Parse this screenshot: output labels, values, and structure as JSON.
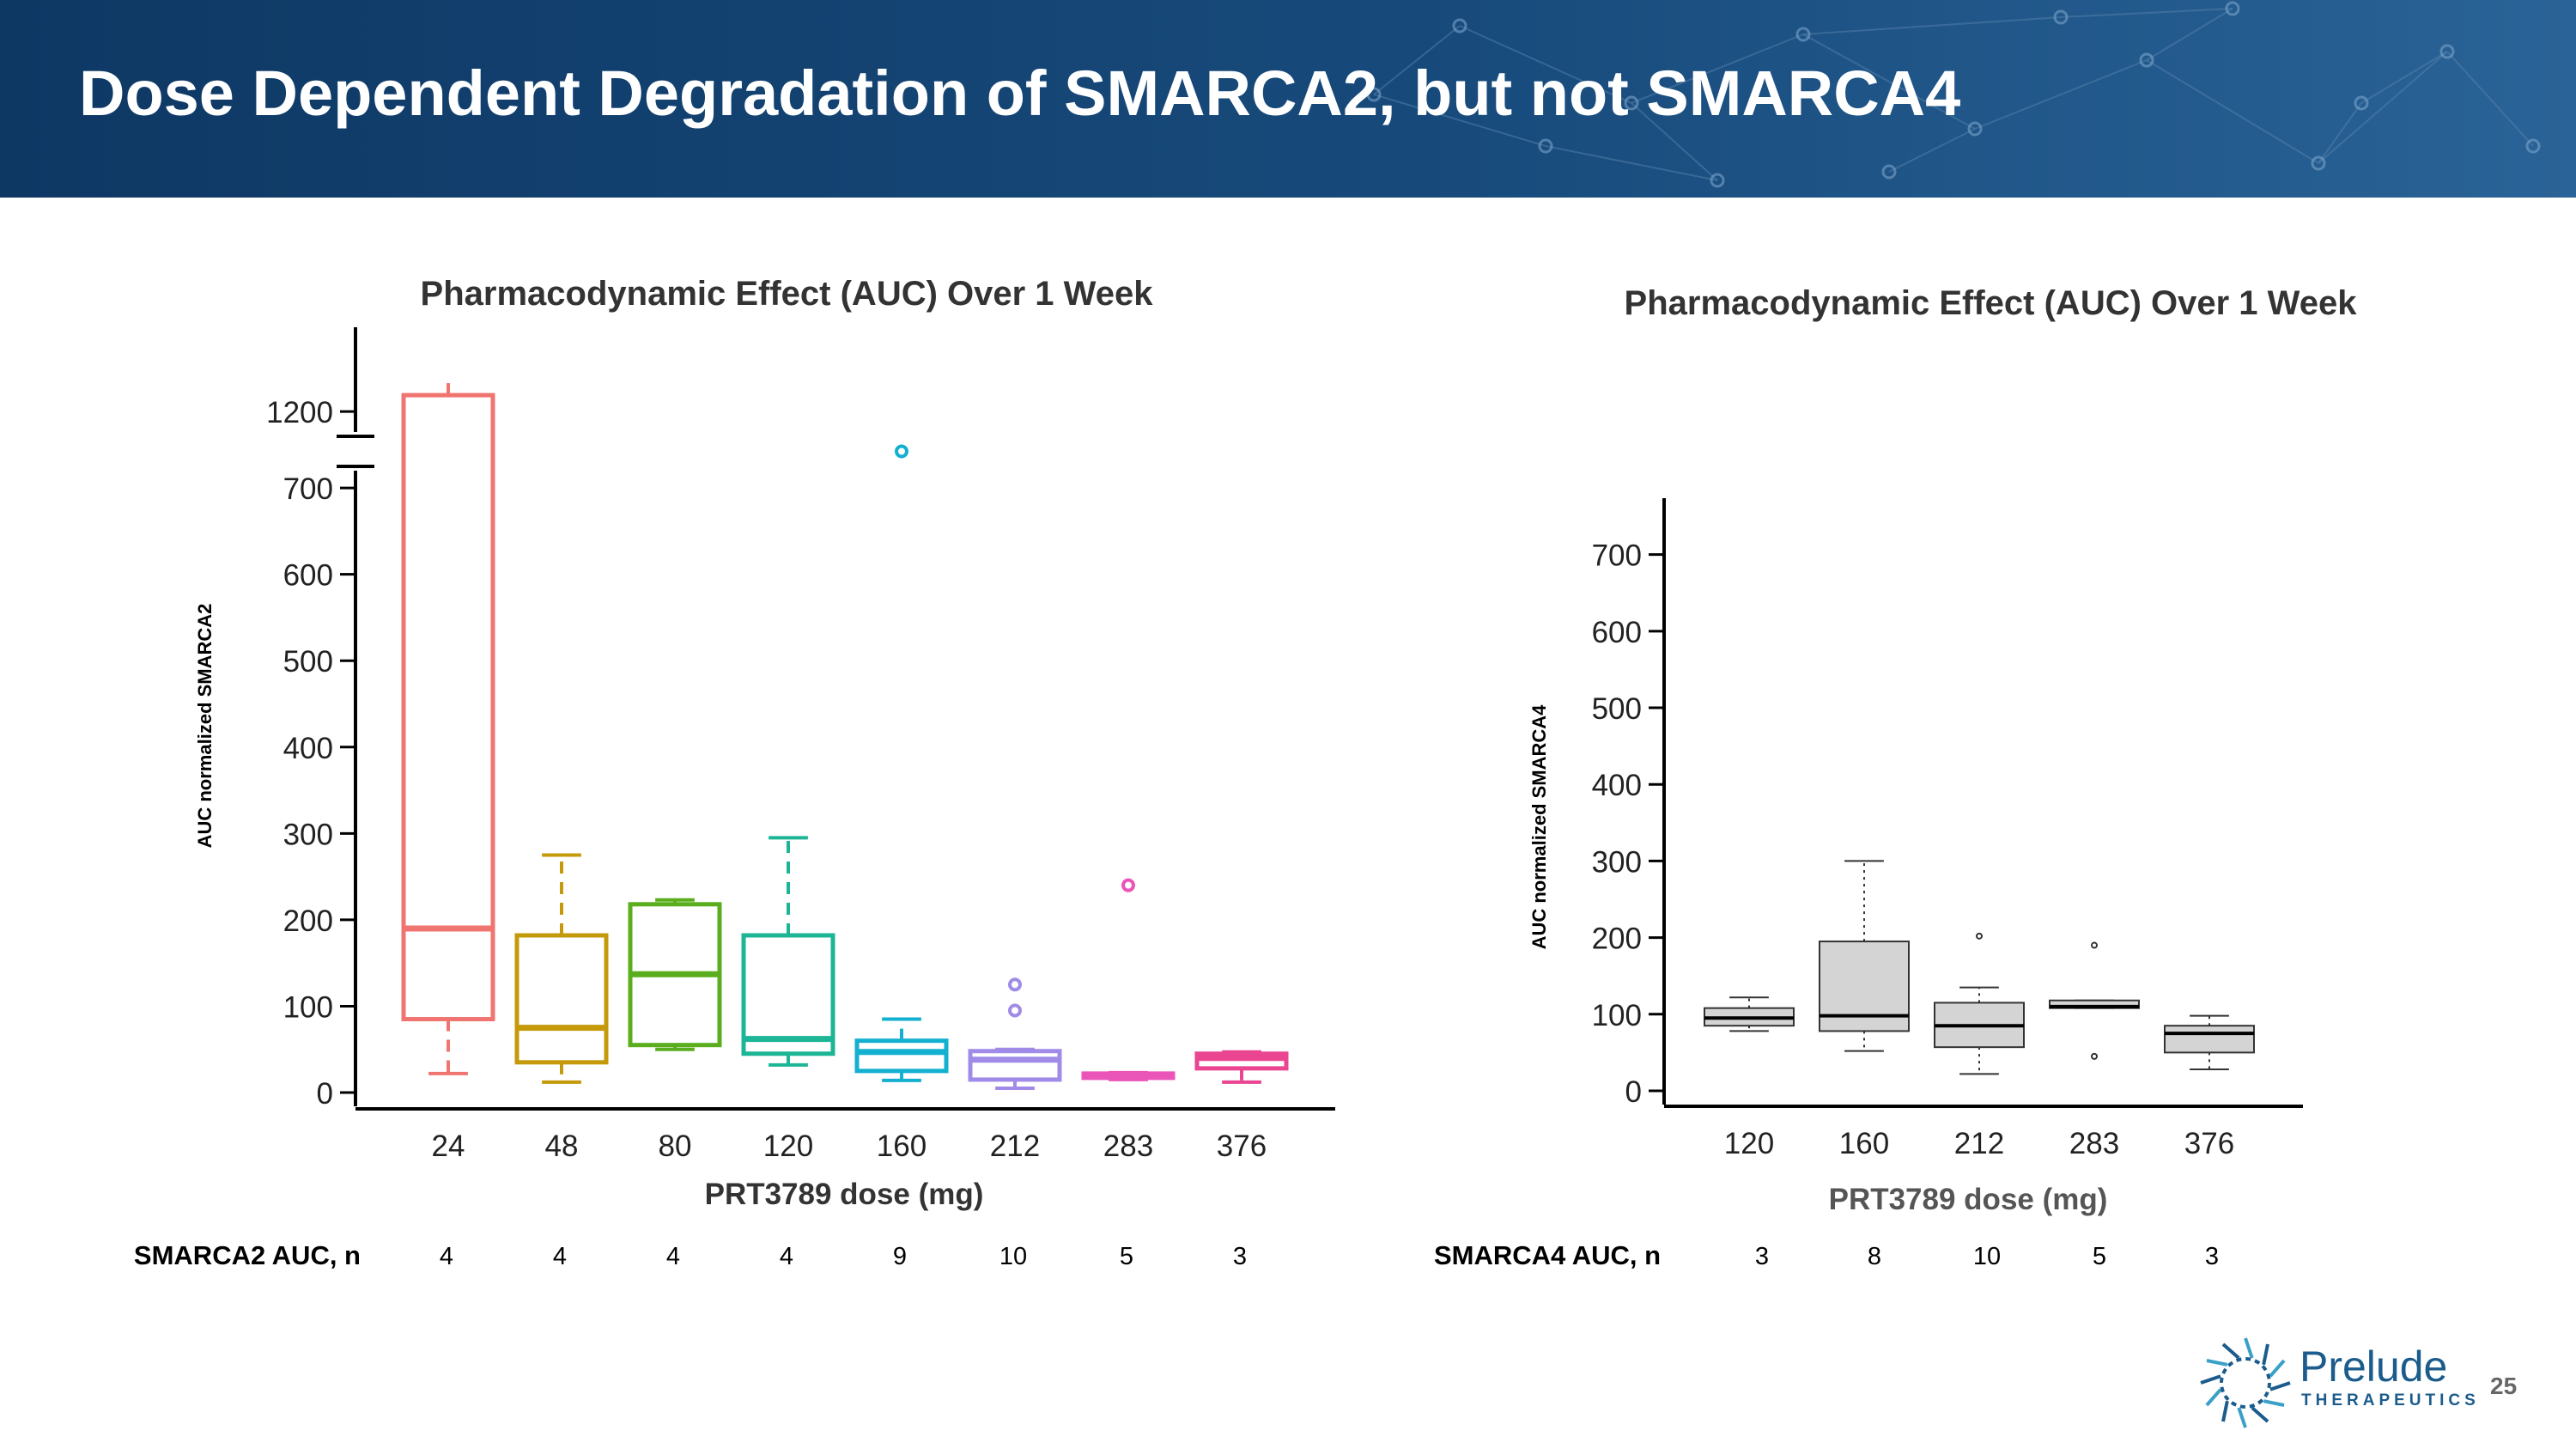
{
  "slide": {
    "title": "Dose Dependent Degradation of SMARCA2, but not SMARCA4",
    "page_number": "25"
  },
  "brand": {
    "name": "Prelude",
    "tagline": "THERAPEUTICS",
    "color": "#1b5c8c"
  },
  "colors": {
    "header_dark": "#0e3864",
    "header_light": "#2a6397",
    "axis": "#000000"
  },
  "chart_data": [
    {
      "type": "boxplot",
      "title": "Pharmacodynamic Effect (AUC) Over 1 Week",
      "xlabel": "PRT3789 dose (mg)",
      "ylabel": "AUC normalized SMARCA2",
      "yticks": [
        0,
        100,
        200,
        300,
        400,
        500,
        600,
        700,
        1200
      ],
      "ylim": [
        0,
        1280
      ],
      "y_axis_break": [
        720,
        1150
      ],
      "categories": [
        "24",
        "48",
        "80",
        "120",
        "160",
        "212",
        "283",
        "376"
      ],
      "boxes": [
        {
          "dose": "24",
          "min": 22,
          "q1": 85,
          "median": 190,
          "q3": 1240,
          "max": 1280,
          "outliers": [],
          "color": "#f07470"
        },
        {
          "dose": "48",
          "min": 12,
          "q1": 35,
          "median": 75,
          "q3": 182,
          "max": 275,
          "outliers": [],
          "color": "#c49a0b"
        },
        {
          "dose": "80",
          "min": 50,
          "q1": 55,
          "median": 137,
          "q3": 218,
          "max": 223,
          "outliers": [],
          "color": "#5aad1c"
        },
        {
          "dose": "120",
          "min": 32,
          "q1": 45,
          "median": 62,
          "q3": 182,
          "max": 295,
          "outliers": [],
          "color": "#1cb596"
        },
        {
          "dose": "160",
          "min": 14,
          "q1": 25,
          "median": 47,
          "q3": 60,
          "max": 85,
          "outliers": [
            760
          ],
          "color": "#14b0d0"
        },
        {
          "dose": "212",
          "min": 5,
          "q1": 15,
          "median": 38,
          "q3": 48,
          "max": 50,
          "outliers": [
            95,
            125
          ],
          "color": "#a08be8"
        },
        {
          "dose": "283",
          "min": 15,
          "q1": 17,
          "median": 19,
          "q3": 22,
          "max": 23,
          "outliers": [
            240
          ],
          "color": "#ea55b8"
        },
        {
          "dose": "376",
          "min": 12,
          "q1": 28,
          "median": 40,
          "q3": 45,
          "max": 47,
          "outliers": [],
          "color": "#ea4591"
        }
      ],
      "n_label": "SMARCA2 AUC, n",
      "n_values": [
        "4",
        "4",
        "4",
        "4",
        "9",
        "10",
        "5",
        "3"
      ]
    },
    {
      "type": "boxplot",
      "title": "Pharmacodynamic Effect (AUC) Over 1 Week",
      "xlabel": "PRT3789 dose (mg)",
      "ylabel": "AUC normalized SMARCA4",
      "yticks": [
        0,
        100,
        200,
        300,
        400,
        500,
        600,
        700
      ],
      "ylim": [
        0,
        740
      ],
      "categories": [
        "120",
        "160",
        "212",
        "283",
        "376"
      ],
      "boxes": [
        {
          "dose": "120",
          "min": 78,
          "q1": 85,
          "median": 95,
          "q3": 108,
          "max": 122,
          "outliers": [],
          "color": "#d4d4d4"
        },
        {
          "dose": "160",
          "min": 52,
          "q1": 78,
          "median": 98,
          "q3": 195,
          "max": 300,
          "outliers": [],
          "color": "#d4d4d4"
        },
        {
          "dose": "212",
          "min": 22,
          "q1": 57,
          "median": 85,
          "q3": 115,
          "max": 135,
          "outliers": [
            202
          ],
          "color": "#d4d4d4"
        },
        {
          "dose": "283",
          "min": 108,
          "q1": 108,
          "median": 110,
          "q3": 118,
          "max": 118,
          "outliers": [
            190,
            45
          ],
          "color": "#d4d4d4"
        },
        {
          "dose": "376",
          "min": 28,
          "q1": 50,
          "median": 75,
          "q3": 85,
          "max": 98,
          "outliers": [],
          "color": "#d4d4d4"
        }
      ],
      "n_label": "SMARCA4 AUC, n",
      "n_values": [
        "3",
        "8",
        "10",
        "5",
        "3"
      ]
    }
  ]
}
